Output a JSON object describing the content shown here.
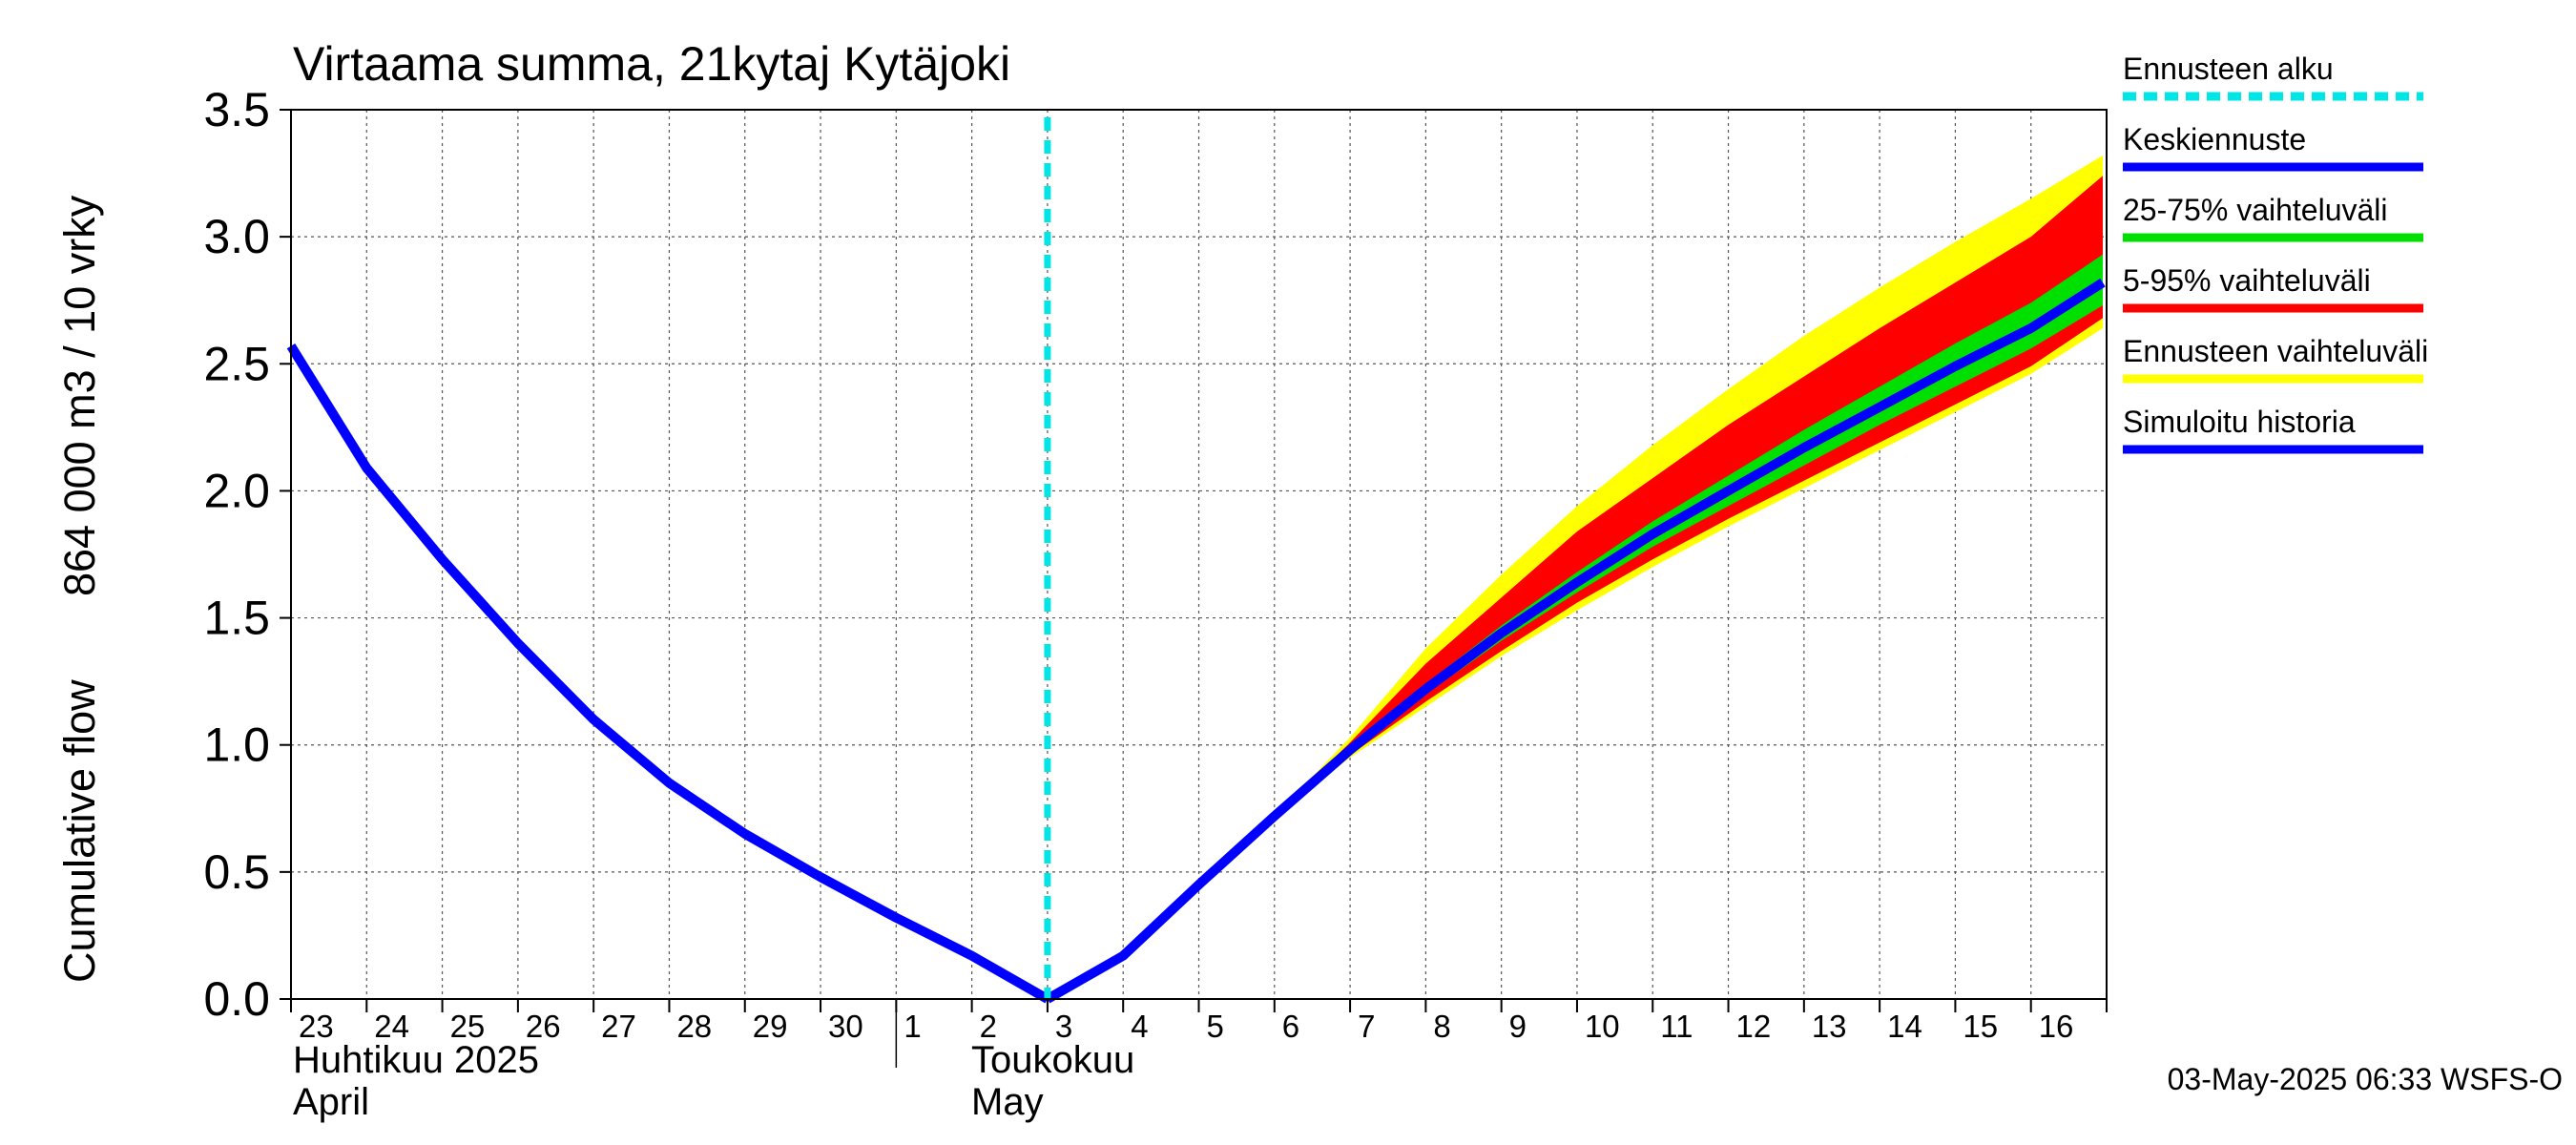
{
  "chart_data": {
    "type": "area",
    "title": "Virtaama summa, 21kytaj Kytäjoki",
    "ylabel_line1": "Cumulative flow",
    "ylabel_line2": "864 000 m3 / 10 vrky",
    "ylim": [
      0,
      3.5
    ],
    "yticks": [
      "0.0",
      "0.5",
      "1.0",
      "1.5",
      "2.0",
      "2.5",
      "3.0",
      "3.5"
    ],
    "day_labels": [
      "23",
      "24",
      "25",
      "26",
      "27",
      "28",
      "29",
      "30",
      "1",
      "2",
      "3",
      "4",
      "5",
      "6",
      "7",
      "8",
      "9",
      "10",
      "11",
      "12",
      "13",
      "14",
      "15",
      "16"
    ],
    "month_labels": {
      "april_fi": "Huhtikuu  2025",
      "april_en": "April",
      "may_fi": "Toukokuu",
      "may_en": "May"
    },
    "forecast_start_day": 10,
    "history": {
      "x": [
        0,
        1,
        2,
        3,
        4,
        5,
        6,
        7,
        8,
        9,
        10
      ],
      "y": [
        2.57,
        2.09,
        1.73,
        1.4,
        1.1,
        0.85,
        0.65,
        0.48,
        0.32,
        0.17,
        0.0
      ]
    },
    "forecast": {
      "x": [
        10,
        11,
        12,
        13,
        14,
        15,
        16,
        17,
        18,
        19,
        20,
        21,
        22,
        23,
        23.95
      ],
      "median": [
        0.0,
        0.17,
        0.45,
        0.72,
        0.98,
        1.22,
        1.44,
        1.64,
        1.83,
        2.0,
        2.17,
        2.33,
        2.49,
        2.64,
        2.82
      ],
      "p25": [
        0.0,
        0.17,
        0.45,
        0.72,
        0.97,
        1.2,
        1.41,
        1.6,
        1.78,
        1.94,
        2.1,
        2.26,
        2.41,
        2.56,
        2.73
      ],
      "p75": [
        0.0,
        0.17,
        0.45,
        0.72,
        0.99,
        1.24,
        1.47,
        1.68,
        1.88,
        2.06,
        2.24,
        2.41,
        2.58,
        2.74,
        2.93
      ],
      "p5": [
        0.0,
        0.17,
        0.45,
        0.72,
        0.96,
        1.17,
        1.37,
        1.56,
        1.73,
        1.89,
        2.04,
        2.19,
        2.34,
        2.49,
        2.68
      ],
      "p95": [
        0.0,
        0.17,
        0.45,
        0.72,
        1.01,
        1.32,
        1.58,
        1.84,
        2.05,
        2.26,
        2.45,
        2.64,
        2.82,
        3.0,
        3.24
      ],
      "min": [
        0.0,
        0.17,
        0.45,
        0.72,
        0.95,
        1.15,
        1.35,
        1.53,
        1.7,
        1.86,
        2.01,
        2.16,
        2.31,
        2.46,
        2.64
      ],
      "max": [
        0.0,
        0.17,
        0.45,
        0.72,
        1.03,
        1.38,
        1.67,
        1.94,
        2.18,
        2.4,
        2.61,
        2.8,
        2.98,
        3.15,
        3.32
      ]
    },
    "legend": [
      {
        "label": "Ennusteen alku",
        "color": "#00e5e5",
        "style": "dashed"
      },
      {
        "label": "Keskiennuste",
        "color": "#0000ff",
        "style": "solid"
      },
      {
        "label": "25-75% vaihteluväli",
        "color": "#00e000",
        "style": "solid"
      },
      {
        "label": "5-95% vaihteluväli",
        "color": "#ff0000",
        "style": "solid"
      },
      {
        "label": "Ennusteen vaihteluväli",
        "color": "#ffff00",
        "style": "solid"
      },
      {
        "label": "Simuloitu historia",
        "color": "#0000ff",
        "style": "solid"
      }
    ],
    "footer": "03-May-2025 06:33 WSFS-O"
  }
}
